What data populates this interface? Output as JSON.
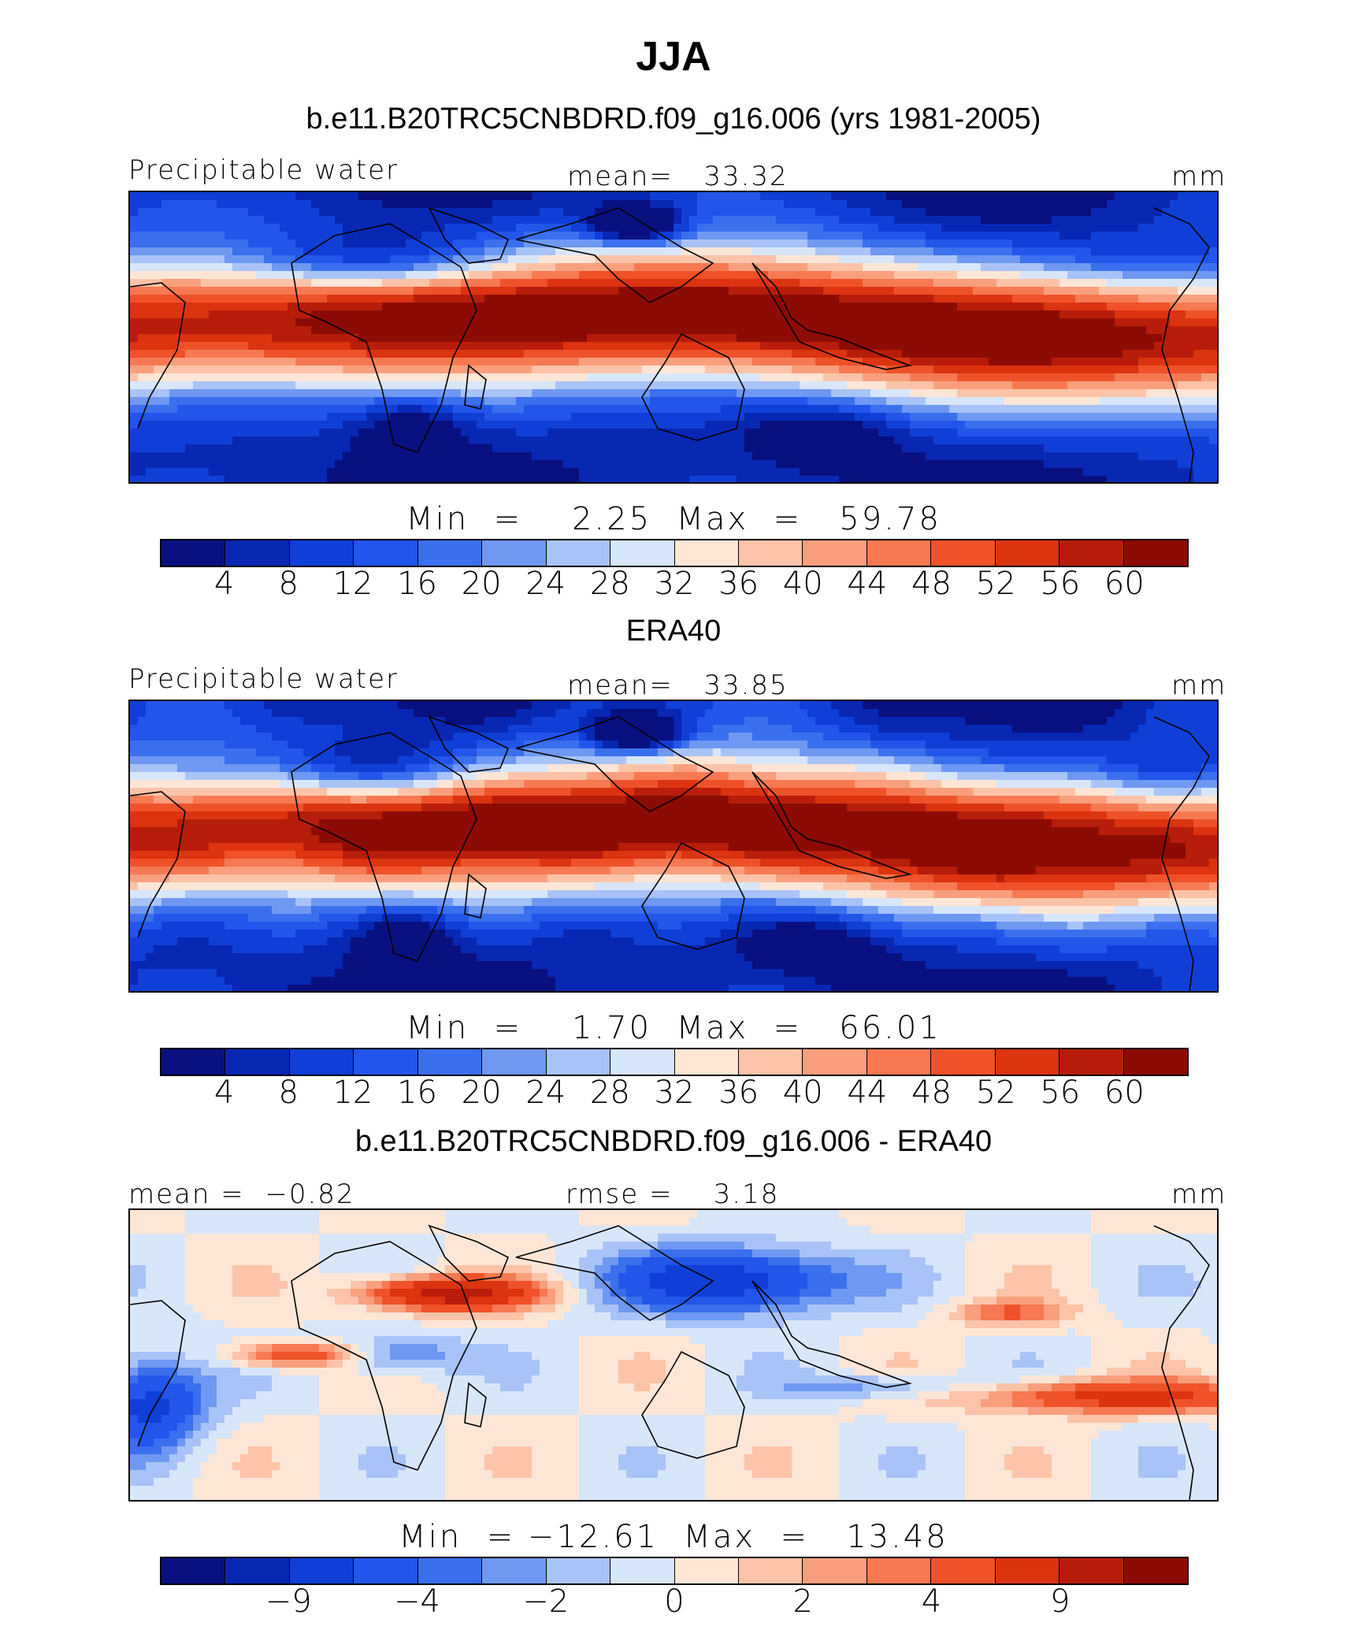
{
  "title": "JJA",
  "units": "mm",
  "panels": [
    {
      "title": "b.e11.B20TRC5CNBDRD.f09_g16.006 (yrs 1981-2005)",
      "left_label": "Precipitable water",
      "center_label": "mean=   33.32",
      "right_label": "mm",
      "min_text": "Min  =    2.25",
      "max_text": "Max  =   59.78",
      "colorbar_labels": [
        "4",
        "8",
        "12",
        "16",
        "20",
        "24",
        "28",
        "32",
        "36",
        "40",
        "44",
        "48",
        "52",
        "56",
        "60"
      ]
    },
    {
      "title": "ERA40",
      "left_label": "Precipitable water",
      "center_label": "mean=   33.85",
      "right_label": "mm",
      "min_text": "Min  =    1.70",
      "max_text": "Max  =   66.01",
      "colorbar_labels": [
        "4",
        "8",
        "12",
        "16",
        "20",
        "24",
        "28",
        "32",
        "36",
        "40",
        "44",
        "48",
        "52",
        "56",
        "60"
      ]
    },
    {
      "title": "b.e11.B20TRC5CNBDRD.f09_g16.006 - ERA40",
      "left_label": "mean =  −0.82",
      "center_label": "rmse =    3.18",
      "right_label": "mm",
      "min_text": "Min  = −12.61",
      "max_text": "Max  =   13.48",
      "colorbar_labels": [
        "−9",
        "−4",
        "−2",
        "0",
        "2",
        "4",
        "9"
      ]
    }
  ],
  "chart_data": [
    {
      "type": "heatmap",
      "title": "b.e11.B20TRC5CNBDRD.f09_g16.006 (yrs 1981-2005)",
      "variable": "Precipitable water",
      "units": "mm",
      "mean": 33.32,
      "min": 2.25,
      "max": 59.78,
      "levels": [
        4,
        8,
        12,
        16,
        20,
        24,
        28,
        32,
        36,
        40,
        44,
        48,
        52,
        56,
        60
      ]
    },
    {
      "type": "heatmap",
      "title": "ERA40",
      "variable": "Precipitable water",
      "units": "mm",
      "mean": 33.85,
      "min": 1.7,
      "max": 66.01,
      "levels": [
        4,
        8,
        12,
        16,
        20,
        24,
        28,
        32,
        36,
        40,
        44,
        48,
        52,
        56,
        60
      ]
    },
    {
      "type": "heatmap",
      "title": "b.e11.B20TRC5CNBDRD.f09_g16.006 - ERA40",
      "units": "mm",
      "mean": -0.82,
      "rmse": 3.18,
      "min": -12.61,
      "max": 13.48,
      "levels": [
        -9,
        -4,
        -2,
        0,
        2,
        4,
        9
      ]
    }
  ],
  "colors": {
    "scale": [
      "#08107f",
      "#0827b3",
      "#0f3fd6",
      "#2255ea",
      "#3a6fee",
      "#6f98f2",
      "#a8c3f7",
      "#d8e6fa",
      "#fde6d6",
      "#fcc3a8",
      "#f99f7d",
      "#f67952",
      "#ef5228",
      "#dc3310",
      "#b71d0a",
      "#8c0b04"
    ]
  }
}
